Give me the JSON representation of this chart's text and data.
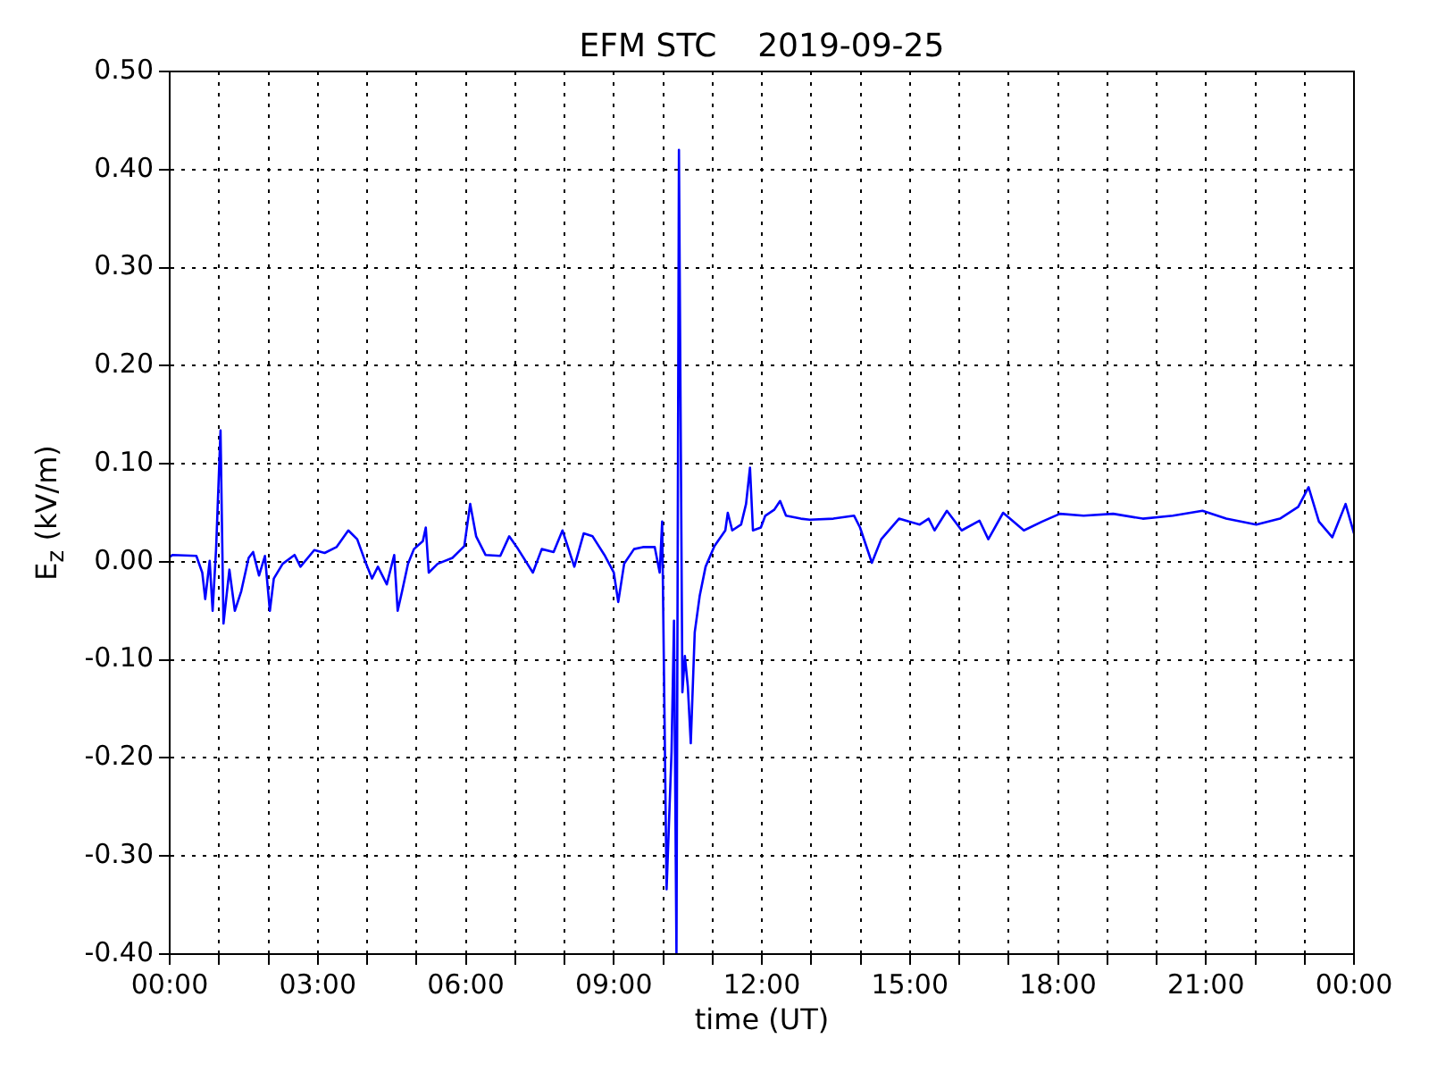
{
  "chart_data": {
    "type": "line",
    "title": "EFM STC    2019-09-25",
    "xlabel": "time (UT)",
    "ylabel": "E$_{z}$ (kV/m)",
    "x": [
      0,
      0.06,
      0.54,
      0.66,
      0.72,
      0.81,
      0.87,
      0.94,
      1.03,
      1.09,
      1.21,
      1.32,
      1.45,
      1.6,
      1.69,
      1.81,
      1.93,
      2.03,
      2.11,
      2.29,
      2.53,
      2.65,
      2.93,
      3.14,
      3.38,
      3.62,
      3.8,
      3.98,
      4.1,
      4.22,
      4.4,
      4.55,
      4.62,
      4.71,
      4.83,
      4.95,
      5.13,
      5.19,
      5.25,
      5.43,
      5.73,
      5.97,
      6.09,
      6.21,
      6.4,
      6.7,
      6.88,
      7.06,
      7.36,
      7.54,
      7.78,
      7.96,
      8.2,
      8.39,
      8.57,
      8.81,
      9.0,
      9.09,
      9.21,
      9.41,
      9.59,
      9.83,
      9.93,
      9.98,
      10.07,
      10.17,
      10.22,
      10.27,
      10.32,
      10.39,
      10.44,
      10.5,
      10.56,
      10.64,
      10.74,
      10.86,
      11.04,
      11.26,
      11.31,
      11.4,
      11.58,
      11.68,
      11.76,
      11.82,
      11.98,
      12.07,
      12.25,
      12.37,
      12.49,
      12.79,
      12.97,
      13.45,
      13.87,
      13.99,
      14.23,
      14.42,
      14.78,
      15.2,
      15.38,
      15.5,
      15.75,
      16.05,
      16.41,
      16.59,
      16.89,
      17.31,
      17.68,
      18.04,
      18.52,
      19.12,
      19.72,
      20.33,
      20.93,
      21.41,
      22.02,
      22.5,
      22.87,
      23.08,
      23.29,
      23.56,
      23.83,
      24
    ],
    "series": [
      {
        "color": "#0000ff",
        "values": [
          0.005,
          0.007,
          0.006,
          -0.011,
          -0.038,
          0.001,
          -0.05,
          0.013,
          0.134,
          -0.063,
          -0.008,
          -0.05,
          -0.03,
          0.004,
          0.01,
          -0.014,
          0.006,
          -0.05,
          -0.017,
          -0.002,
          0.007,
          -0.005,
          0.012,
          0.009,
          0.015,
          0.032,
          0.023,
          -0.002,
          -0.017,
          -0.005,
          -0.023,
          0.007,
          -0.05,
          -0.03,
          -0.002,
          0.013,
          0.021,
          0.035,
          -0.011,
          -0.002,
          0.004,
          0.016,
          0.059,
          0.026,
          0.007,
          0.006,
          0.026,
          0.013,
          -0.011,
          0.013,
          0.01,
          0.032,
          -0.005,
          0.029,
          0.026,
          0.007,
          -0.011,
          -0.041,
          -0.002,
          0.013,
          0.015,
          0.015,
          -0.011,
          0.041,
          -0.334,
          -0.194,
          -0.06,
          -0.4,
          0.42,
          -0.133,
          -0.096,
          -0.127,
          -0.185,
          -0.072,
          -0.035,
          -0.005,
          0.016,
          0.032,
          0.05,
          0.032,
          0.038,
          0.059,
          0.096,
          0.032,
          0.035,
          0.047,
          0.053,
          0.062,
          0.047,
          0.044,
          0.043,
          0.044,
          0.047,
          0.035,
          -0.001,
          0.023,
          0.044,
          0.038,
          0.044,
          0.032,
          0.052,
          0.032,
          0.042,
          0.023,
          0.05,
          0.032,
          0.041,
          0.049,
          0.047,
          0.049,
          0.044,
          0.047,
          0.052,
          0.044,
          0.038,
          0.044,
          0.056,
          0.076,
          0.041,
          0.025,
          0.059,
          0.029
        ]
      }
    ],
    "xlim": [
      0,
      24
    ],
    "xticks": [
      {
        "value": 0,
        "label": "00:00"
      },
      {
        "value": 1,
        "label": null
      },
      {
        "value": 2,
        "label": null
      },
      {
        "value": 3,
        "label": "03:00"
      },
      {
        "value": 4,
        "label": null
      },
      {
        "value": 5,
        "label": null
      },
      {
        "value": 6,
        "label": "06:00"
      },
      {
        "value": 7,
        "label": null
      },
      {
        "value": 8,
        "label": null
      },
      {
        "value": 9,
        "label": "09:00"
      },
      {
        "value": 10,
        "label": null
      },
      {
        "value": 11,
        "label": null
      },
      {
        "value": 12,
        "label": "12:00"
      },
      {
        "value": 13,
        "label": null
      },
      {
        "value": 14,
        "label": null
      },
      {
        "value": 15,
        "label": "15:00"
      },
      {
        "value": 16,
        "label": null
      },
      {
        "value": 17,
        "label": null
      },
      {
        "value": 18,
        "label": "18:00"
      },
      {
        "value": 19,
        "label": null
      },
      {
        "value": 20,
        "label": null
      },
      {
        "value": 21,
        "label": "21:00"
      },
      {
        "value": 22,
        "label": null
      },
      {
        "value": 23,
        "label": null
      },
      {
        "value": 24,
        "label": "00:00"
      }
    ],
    "ylim": [
      -0.4,
      0.5
    ],
    "yticks": [
      {
        "value": -0.4,
        "label": "-0.40"
      },
      {
        "value": -0.3,
        "label": "-0.30"
      },
      {
        "value": -0.2,
        "label": "-0.20"
      },
      {
        "value": -0.1,
        "label": "-0.10"
      },
      {
        "value": 0,
        "label": "0.00"
      },
      {
        "value": 0.1,
        "label": "0.10"
      },
      {
        "value": 0.2,
        "label": "0.20"
      },
      {
        "value": 0.3,
        "label": "0.30"
      },
      {
        "value": 0.4,
        "label": "0.40"
      },
      {
        "value": 0.5,
        "label": "0.50"
      }
    ],
    "grid": true
  }
}
